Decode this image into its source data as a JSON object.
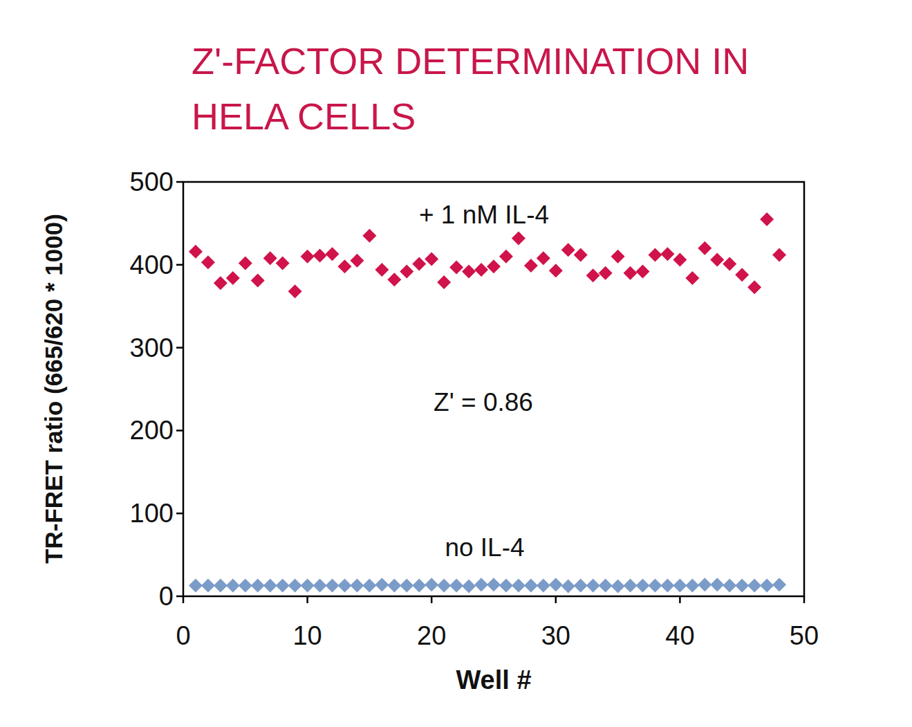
{
  "chart_data": {
    "type": "scatter",
    "title": "Z'-FACTOR DETERMINATION IN HELA CELLS",
    "x_label": "Well #",
    "y_label": "TR-FRET ratio (665/620 * 1000)",
    "annotations": [
      "Z' = 0.86"
    ],
    "x": [
      1,
      2,
      3,
      4,
      5,
      6,
      7,
      8,
      9,
      10,
      11,
      12,
      13,
      14,
      15,
      16,
      17,
      18,
      19,
      20,
      21,
      22,
      23,
      24,
      25,
      26,
      27,
      28,
      29,
      30,
      31,
      32,
      33,
      34,
      35,
      36,
      37,
      38,
      39,
      40,
      41,
      42,
      43,
      44,
      45,
      46,
      47,
      48
    ],
    "series": [
      {
        "name": "+ 1 nM IL-4",
        "color": "#d0134a",
        "marker": "diamond",
        "values": [
          416,
          403,
          378,
          384,
          402,
          381,
          408,
          402,
          368,
          410,
          411,
          413,
          398,
          405,
          435,
          394,
          382,
          392,
          401,
          407,
          379,
          397,
          392,
          394,
          398,
          410,
          432,
          399,
          408,
          393,
          418,
          412,
          387,
          390,
          410,
          390,
          392,
          412,
          413,
          406,
          384,
          420,
          406,
          401,
          388,
          373,
          455,
          412
        ]
      },
      {
        "name": "no IL-4",
        "color": "#7b9cc8",
        "marker": "diamond",
        "values": [
          13,
          13,
          13,
          13,
          13,
          13,
          13,
          13,
          13,
          13,
          13,
          13,
          13,
          13,
          13,
          14,
          13,
          13,
          13,
          14,
          13,
          13,
          12,
          14,
          14,
          13,
          13,
          13,
          13,
          14,
          12,
          13,
          13,
          13,
          12,
          13,
          13,
          13,
          13,
          13,
          13,
          14,
          14,
          13,
          13,
          13,
          13,
          14
        ]
      }
    ],
    "xlim": [
      0,
      50
    ],
    "xticks": [
      0,
      10,
      20,
      30,
      40,
      50
    ],
    "ylim": [
      0,
      500
    ],
    "yticks": [
      0,
      100,
      200,
      300,
      400,
      500
    ],
    "grid": false
  }
}
